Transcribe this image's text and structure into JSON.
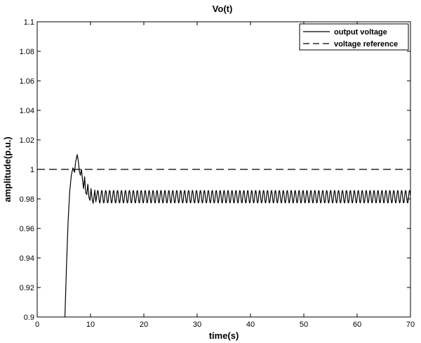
{
  "chart_data": {
    "type": "line",
    "title": "Vo(t)",
    "xlabel": "time(s)",
    "ylabel": "amplitude(p.u.)",
    "xlim": [
      0,
      70
    ],
    "ylim": [
      0.9,
      1.1
    ],
    "x_ticks": [
      0,
      10,
      20,
      30,
      40,
      50,
      60,
      70
    ],
    "x_tick_labels": [
      "0",
      "10",
      "20",
      "30",
      "40",
      "50",
      "60",
      "70"
    ],
    "y_ticks": [
      0.9,
      0.92,
      0.94,
      0.96,
      0.98,
      1.0,
      1.02,
      1.04,
      1.06,
      1.08,
      1.1
    ],
    "y_tick_labels": [
      "0.9",
      "0.92",
      "0.94",
      "0.96",
      "0.98",
      "1",
      "1.02",
      "1.04",
      "1.06",
      "1.08",
      "1.1"
    ],
    "grid": false,
    "legend_position": "top-right",
    "series": [
      {
        "name": "output voltage",
        "style": "solid",
        "color": "#000000",
        "x": [
          5.2,
          5.5,
          5.8,
          6.1,
          6.4,
          6.7,
          7.0,
          7.2,
          7.5,
          7.7,
          7.9,
          8.1,
          8.3,
          8.5,
          8.7,
          8.9,
          9.1,
          9.3,
          9.5,
          9.7,
          9.9,
          10.1,
          10.3,
          10.5,
          10.8,
          11.0,
          11.3
        ],
        "y": [
          0.9,
          0.935,
          0.965,
          0.985,
          0.996,
          1.001,
          0.998,
          1.005,
          1.01,
          1.006,
          0.999,
          0.996,
          1.0,
          0.993,
          0.987,
          0.995,
          0.984,
          0.983,
          0.99,
          0.981,
          0.979,
          0.987,
          0.98,
          0.977,
          0.986,
          0.978,
          0.985
        ],
        "steady_state": {
          "x_start": 11.3,
          "x_end": 70,
          "center": 0.9815,
          "amplitude": 0.0042,
          "period": 0.74
        }
      },
      {
        "name": "voltage reference",
        "style": "dashed",
        "color": "#000000",
        "x": [
          0,
          70
        ],
        "y": [
          1.0,
          1.0
        ]
      }
    ]
  }
}
